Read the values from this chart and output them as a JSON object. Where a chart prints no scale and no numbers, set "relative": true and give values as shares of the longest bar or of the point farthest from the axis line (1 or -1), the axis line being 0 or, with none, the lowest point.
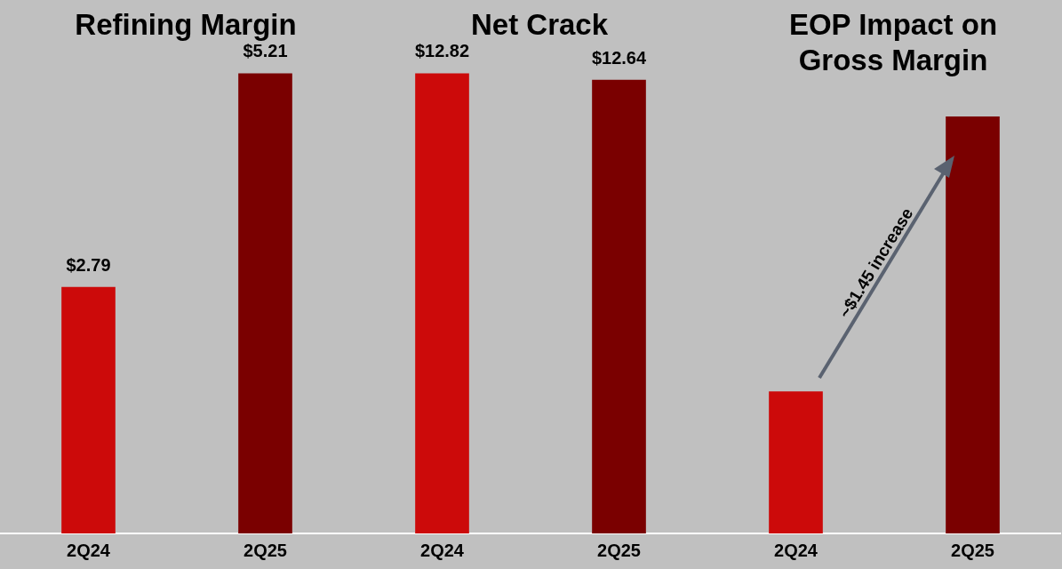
{
  "chart_data": [
    {
      "type": "bar",
      "title": "Refining Margin",
      "categories": [
        "2Q24",
        "2Q25"
      ],
      "values": [
        2.79,
        5.21
      ],
      "colors": [
        "#cc0a0a",
        "#7a0000"
      ],
      "value_labels": [
        "$2.79",
        "$5.21"
      ]
    },
    {
      "type": "bar",
      "title": "Net Crack",
      "categories": [
        "2Q24",
        "2Q25"
      ],
      "values": [
        12.82,
        12.64
      ],
      "colors": [
        "#cc0a0a",
        "#7a0000"
      ],
      "value_labels": [
        "$12.82",
        "$12.64"
      ]
    },
    {
      "type": "bar",
      "title": "EOP Impact on Gross Margin",
      "categories": [
        "2Q24",
        "2Q25"
      ],
      "values": [
        0.34,
        1
      ],
      "colors": [
        "#cc0a0a",
        "#7a0000"
      ],
      "relative": true,
      "annotations": [
        "~$1.45 increase"
      ]
    }
  ]
}
